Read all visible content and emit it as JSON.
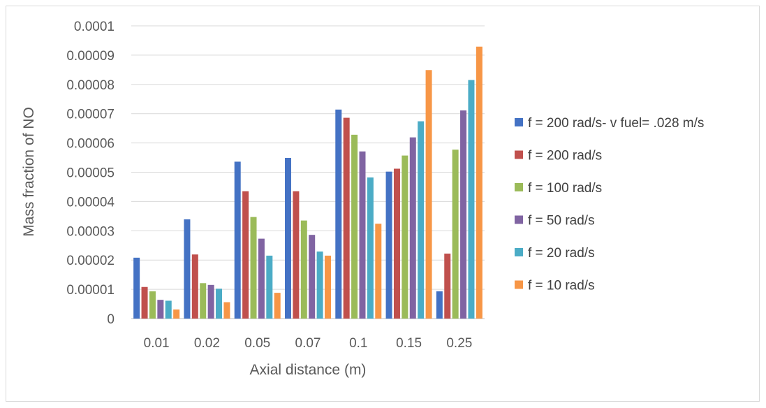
{
  "chart_data": {
    "type": "bar",
    "title": "",
    "xlabel": "Axial distance (m)",
    "ylabel": "Mass fraction of NO",
    "ylim": [
      0,
      0.0001
    ],
    "yticks": [
      "0",
      "0.00001",
      "0.00002",
      "0.00003",
      "0.00004",
      "0.00005",
      "0.00006",
      "0.00007",
      "0.00008",
      "0.00009",
      "0.0001"
    ],
    "categories": [
      "0.01",
      "0.02",
      "0.05",
      "0.07",
      "0.1",
      "0.15",
      "0.25"
    ],
    "grid": "horizontal",
    "legend_position": "right",
    "series": [
      {
        "name": "f = 200 rad/s- v fuel= .028 m/s",
        "color": "#4472C4",
        "values": [
          2.08e-05,
          3.39e-05,
          5.36e-05,
          5.49e-05,
          7.14e-05,
          5.02e-05,
          9.3e-06
        ]
      },
      {
        "name": "f = 200 rad/s",
        "color": "#C0504D",
        "values": [
          1.08e-05,
          2.19e-05,
          4.35e-05,
          4.35e-05,
          6.86e-05,
          5.12e-05,
          2.22e-05
        ]
      },
      {
        "name": "f = 100 rad/s",
        "color": "#9BBB59",
        "values": [
          9.3e-06,
          1.21e-05,
          3.47e-05,
          3.35e-05,
          6.28e-05,
          5.57e-05,
          5.77e-05
        ]
      },
      {
        "name": "f = 50 rad/s",
        "color": "#8064A2",
        "values": [
          6.4e-06,
          1.15e-05,
          2.73e-05,
          2.86e-05,
          5.71e-05,
          6.19e-05,
          7.11e-05
        ]
      },
      {
        "name": "f = 20 rad/s",
        "color": "#4BACC6",
        "values": [
          6.1e-06,
          1.02e-05,
          2.15e-05,
          2.29e-05,
          4.82e-05,
          6.74e-05,
          8.15e-05
        ]
      },
      {
        "name": "f = 10 rad/s",
        "color": "#F79646",
        "values": [
          3.1e-06,
          5.6e-06,
          8.8e-06,
          2.15e-05,
          3.24e-05,
          8.49e-05,
          9.29e-05
        ]
      }
    ]
  }
}
